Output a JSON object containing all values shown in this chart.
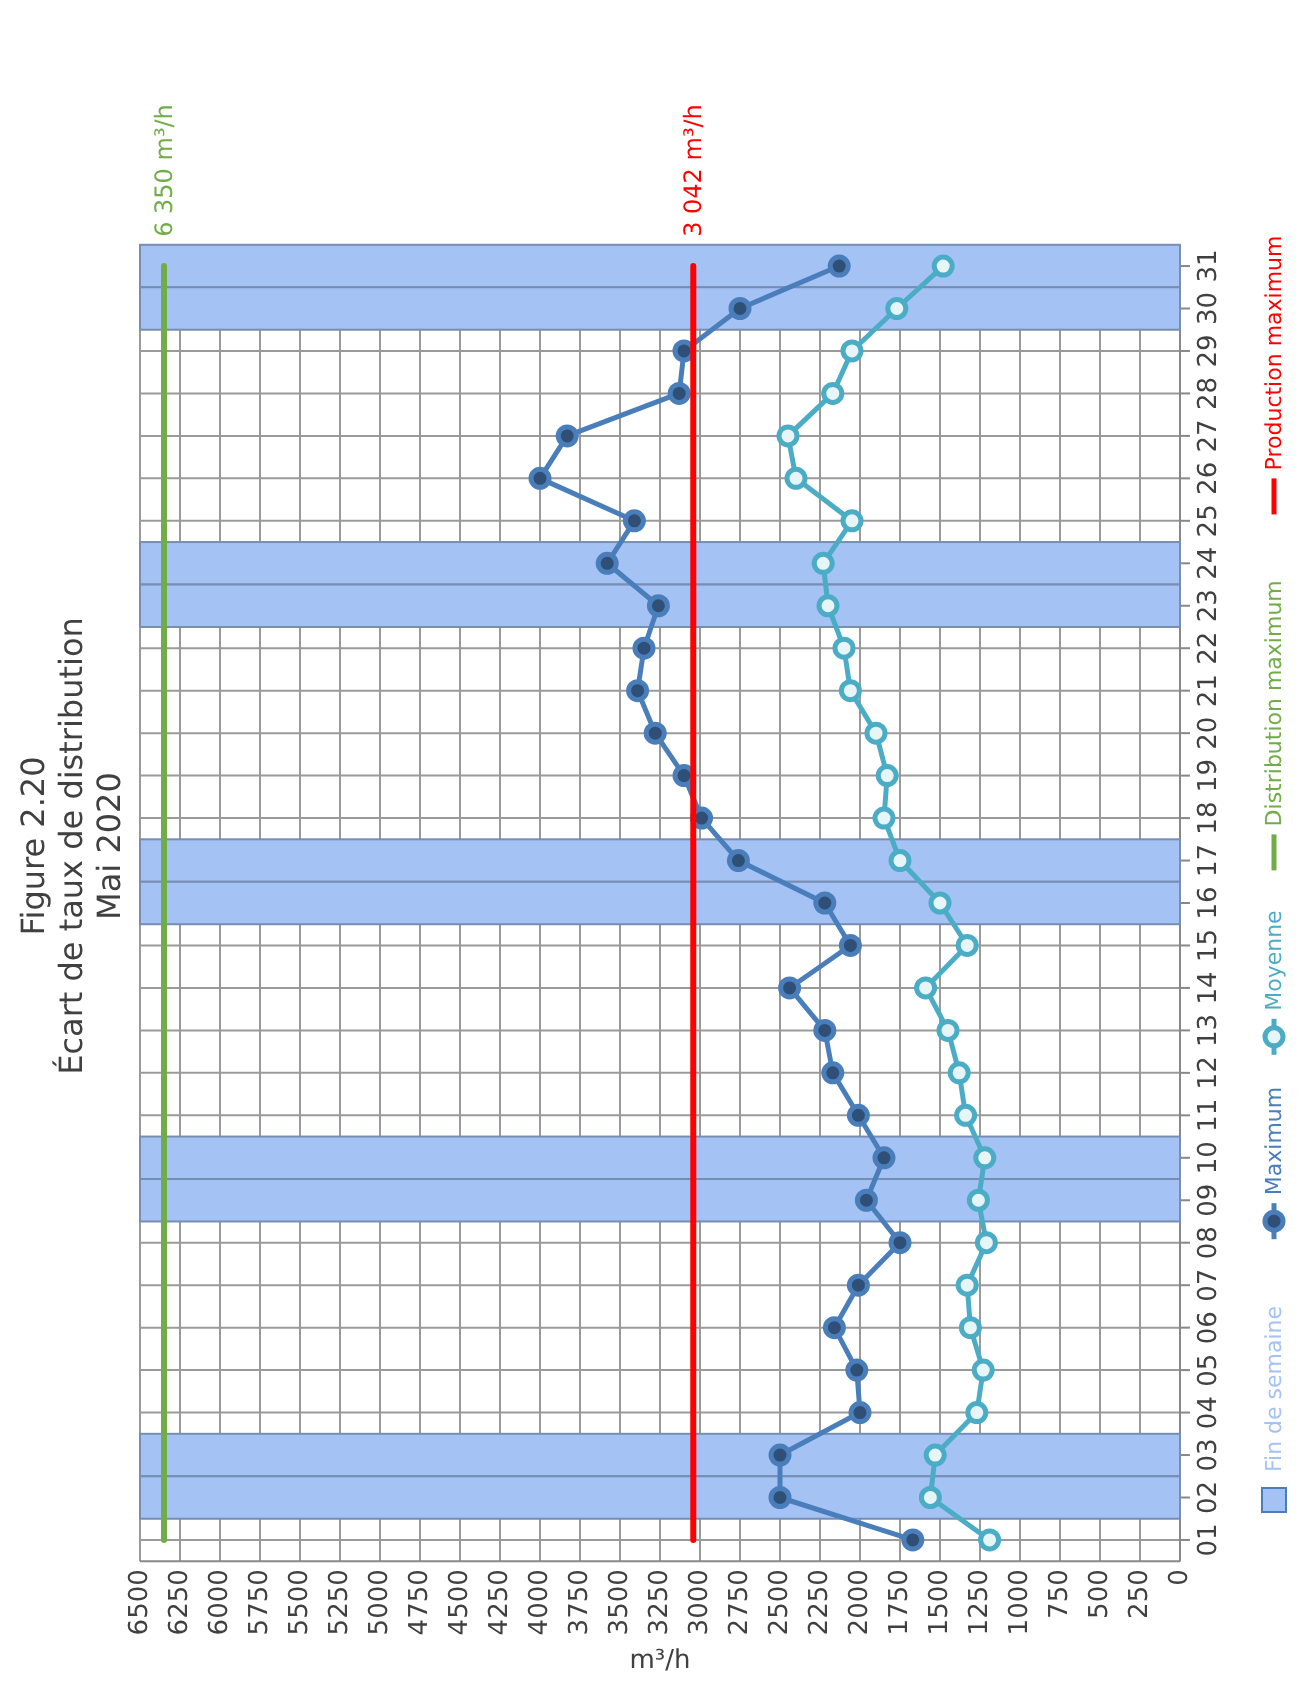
{
  "chart_data": {
    "type": "line",
    "orientation": "horizontal",
    "title": "Figure 2.20\nÉcart de taux de distribution\nMai 2020",
    "xlabel": "m³/h",
    "categories": [
      "31",
      "30",
      "29",
      "28",
      "27",
      "26",
      "25",
      "24",
      "23",
      "22",
      "21",
      "20",
      "19",
      "18",
      "17",
      "16",
      "15",
      "14",
      "13",
      "12",
      "11",
      "10",
      "09",
      "08",
      "07",
      "06",
      "05",
      "04",
      "03",
      "02",
      "01"
    ],
    "series": [
      {
        "name": "Fin de semaine",
        "type": "bar",
        "color": "#a4c2f4",
        "values": [
          6500,
          6500,
          null,
          null,
          null,
          null,
          null,
          6500,
          6500,
          null,
          null,
          null,
          null,
          null,
          6500,
          6500,
          null,
          null,
          null,
          null,
          null,
          6500,
          6500,
          null,
          null,
          null,
          null,
          null,
          6500,
          6500,
          null
        ]
      },
      {
        "name": "Maximum",
        "color": "#4a7ebb",
        "values": [
          2130,
          2750,
          3100,
          3130,
          3830,
          4000,
          3410,
          3580,
          3260,
          3350,
          3390,
          3280,
          3100,
          2990,
          2760,
          2220,
          2060,
          2440,
          2220,
          2170,
          2010,
          1850,
          1960,
          1750,
          2010,
          2160,
          2020,
          2000,
          2500,
          2500,
          1670
        ]
      },
      {
        "name": "Moyenne",
        "color": "#4bacc6",
        "values": [
          1480,
          1770,
          2050,
          2170,
          2450,
          2400,
          2050,
          2230,
          2200,
          2100,
          2060,
          1900,
          1830,
          1850,
          1750,
          1500,
          1330,
          1590,
          1450,
          1380,
          1340,
          1220,
          1260,
          1210,
          1330,
          1310,
          1230,
          1270,
          1530,
          1560,
          1190
        ]
      },
      {
        "name": "Distribution maximum",
        "color": "#70ad47",
        "marker": "none",
        "values": [
          6350,
          6350,
          6350,
          6350,
          6350,
          6350,
          6350,
          6350,
          6350,
          6350,
          6350,
          6350,
          6350,
          6350,
          6350,
          6350,
          6350,
          6350,
          6350,
          6350,
          6350,
          6350,
          6350,
          6350,
          6350,
          6350,
          6350,
          6350,
          6350,
          6350,
          6350
        ]
      },
      {
        "name": "Production maximum",
        "color": "#ff0000",
        "marker": "none",
        "values": [
          3042,
          3042,
          3042,
          3042,
          3042,
          3042,
          3042,
          3042,
          3042,
          3042,
          3042,
          3042,
          3042,
          3042,
          3042,
          3042,
          3042,
          3042,
          3042,
          3042,
          3042,
          3042,
          3042,
          3042,
          3042,
          3042,
          3042,
          3042,
          3042,
          3042,
          3042
        ]
      }
    ],
    "annotations": [
      {
        "text": "6 350 m³/h",
        "x": 6350,
        "y": "31"
      },
      {
        "text": "3 042 m³/h",
        "x": 3042,
        "y": "31"
      }
    ],
    "xlim": [
      6500,
      0
    ],
    "xticks": [
      0,
      250,
      500,
      750,
      1000,
      1250,
      1500,
      1750,
      2000,
      2250,
      2500,
      2750,
      3000,
      3250,
      3500,
      3750,
      4000,
      4250,
      4500,
      4750,
      5000,
      5250,
      5500,
      5750,
      6000,
      6250,
      6500
    ],
    "grid": true,
    "legend": "right",
    "marker": "circle",
    "line_style": "solid"
  }
}
